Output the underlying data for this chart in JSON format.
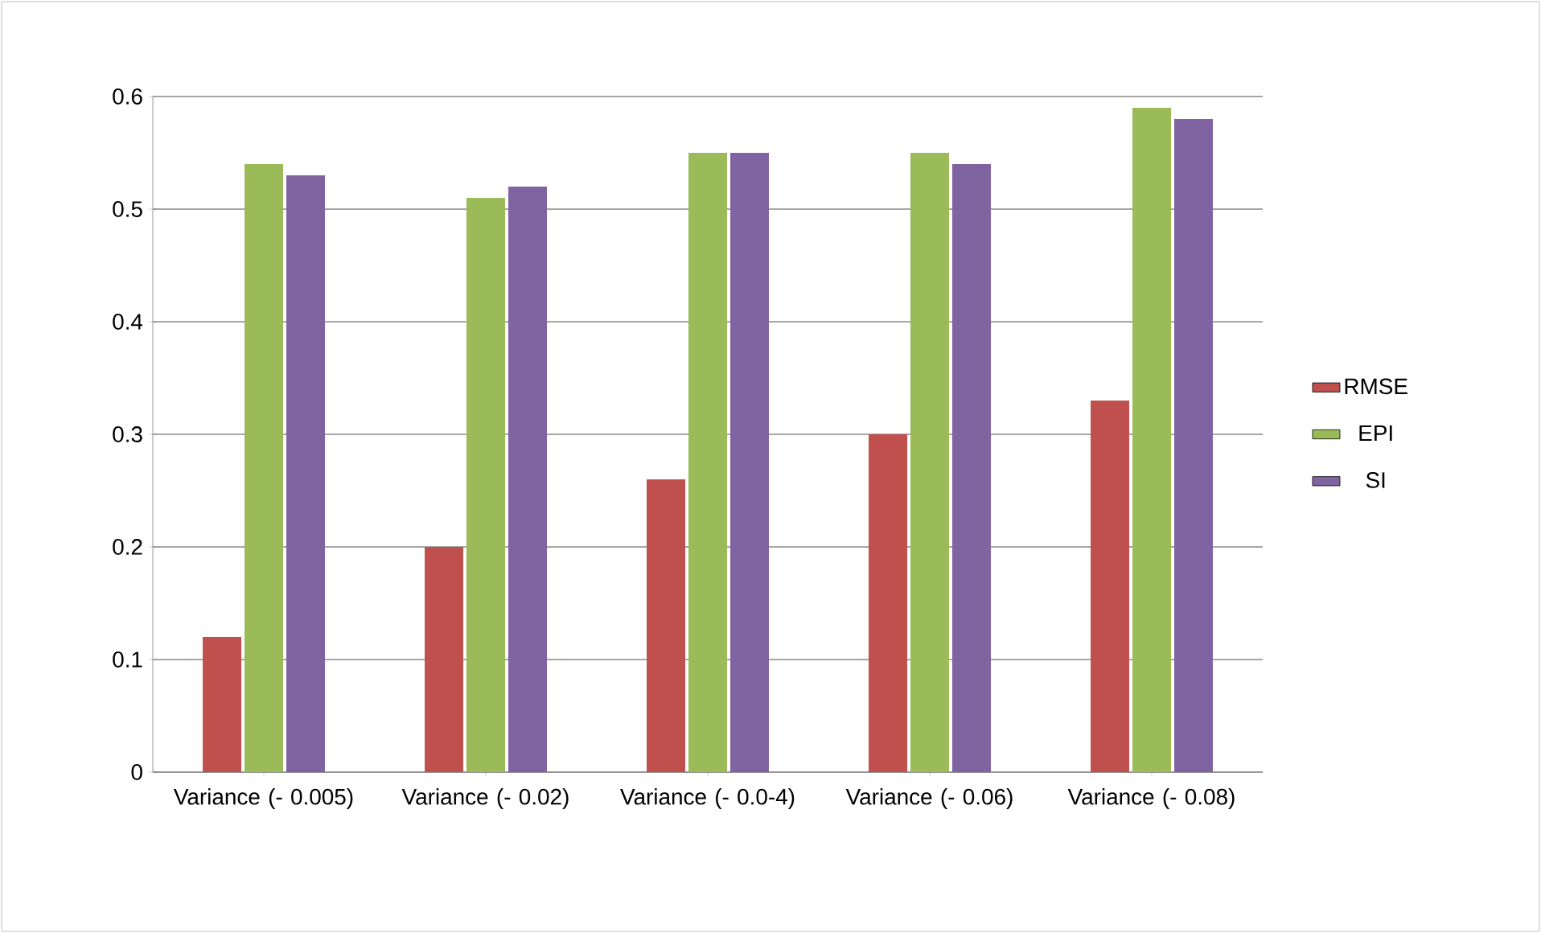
{
  "chart_data": {
    "type": "bar",
    "categories": [
      "Variance (- 0.005)",
      "Variance (- 0.02)",
      "Variance (- 0.0-4)",
      "Variance (- 0.06)",
      "Variance (- 0.08)"
    ],
    "series": [
      {
        "name": "RMSE",
        "color": "#c0504d",
        "values": [
          0.12,
          0.2,
          0.26,
          0.3,
          0.33
        ]
      },
      {
        "name": "EPI",
        "color": "#9bbb59",
        "values": [
          0.54,
          0.51,
          0.55,
          0.55,
          0.59
        ]
      },
      {
        "name": "SI",
        "color": "#8064a2",
        "values": [
          0.53,
          0.52,
          0.55,
          0.54,
          0.58
        ]
      }
    ],
    "ylim": [
      0,
      0.6
    ],
    "yticks": [
      0,
      0.1,
      0.2,
      0.3,
      0.4,
      0.5,
      0.6
    ],
    "grid": "y",
    "legend": "right"
  }
}
